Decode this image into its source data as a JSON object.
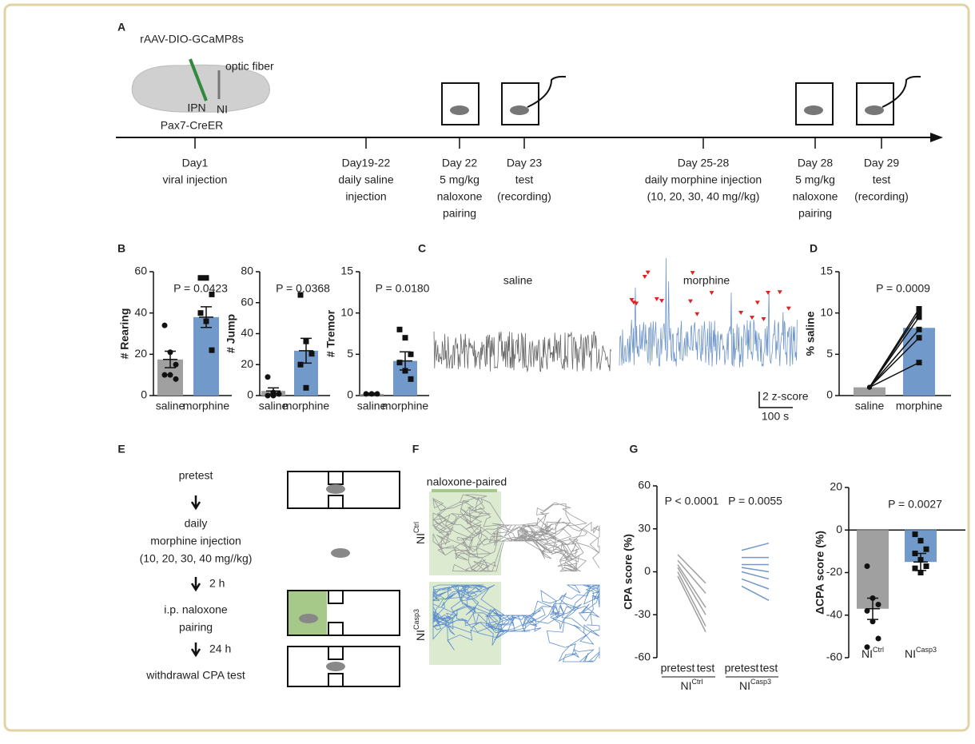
{
  "panel_labels": [
    "A",
    "B",
    "C",
    "D",
    "E",
    "F",
    "G"
  ],
  "timeline": {
    "injection_label": "rAAV-DIO-GCaMP8s",
    "fiber_label": "optic fiber",
    "ipn_label": "IPN",
    "ni_label": "NI",
    "mouse_line": "Pax7-CreER",
    "events": [
      {
        "lines": [
          "Day1",
          "viral injection"
        ]
      },
      {
        "lines": [
          "Day19-22",
          "daily saline",
          "injection"
        ]
      },
      {
        "lines": [
          "Day 22",
          "5 mg/kg",
          "naloxone",
          "pairing"
        ]
      },
      {
        "lines": [
          "Day 23",
          "test",
          "(recording)"
        ]
      },
      {
        "lines": [
          "Day 25-28",
          "daily morphine injection",
          "(10, 20, 30, 40 mg//kg)"
        ]
      },
      {
        "lines": [
          "Day 28",
          "5 mg/kg",
          "naloxone",
          "pairing"
        ]
      },
      {
        "lines": [
          "Day 29",
          "test",
          "(recording)"
        ]
      }
    ]
  },
  "traces": {
    "saline_label": "saline",
    "morphine_label": "morphine",
    "y_scale": "2 z-score",
    "x_scale": "100 s"
  },
  "protocol": {
    "steps": [
      [
        "pretest"
      ],
      [
        "daily",
        "morphine injection",
        "(10, 20, 30, 40 mg//kg)"
      ],
      [
        "i.p. naloxone",
        "pairing"
      ],
      [
        "withdrawal CPA test"
      ]
    ],
    "intervals": [
      "2 h",
      "24 h"
    ]
  },
  "tracks": {
    "zone_label": "naloxone-paired",
    "groups": [
      {
        "base": "NI",
        "sup": "Ctrl"
      },
      {
        "base": "NI",
        "sup": "Casp3"
      }
    ]
  },
  "chart_data": [
    {
      "type": "bar",
      "ylabel": "# Rearing",
      "annotation": "P = 0.0423",
      "categories": [
        "saline",
        "morphine"
      ],
      "values": [
        17.5,
        38
      ],
      "errors": [
        4,
        5
      ],
      "points": [
        [
          34,
          21,
          15,
          10,
          10,
          8
        ],
        [
          57,
          57,
          49,
          40,
          36,
          22
        ]
      ],
      "colors": [
        "#a0a0a0",
        "#7199c9"
      ],
      "ylim": [
        0,
        60
      ],
      "yticks": [
        0,
        20,
        40,
        60
      ]
    },
    {
      "type": "bar",
      "ylabel": "# Jump",
      "annotation": "P = 0.0368",
      "categories": [
        "saline",
        "morphine"
      ],
      "values": [
        3,
        29
      ],
      "errors": [
        2,
        8
      ],
      "points": [
        [
          12,
          2,
          1,
          0,
          0
        ],
        [
          65,
          35,
          27,
          20,
          5
        ]
      ],
      "colors": [
        "#a0a0a0",
        "#7199c9"
      ],
      "ylim": [
        0,
        80
      ],
      "yticks": [
        0,
        20,
        40,
        60,
        80
      ]
    },
    {
      "type": "bar",
      "ylabel": "# Tremor",
      "annotation": "P = 0.0180",
      "categories": [
        "saline",
        "morphine"
      ],
      "values": [
        0.2,
        4.2
      ],
      "errors": [
        0.1,
        1.1
      ],
      "points": [
        [
          0.2,
          0.2,
          0.2
        ],
        [
          8,
          7,
          5,
          4,
          3,
          2
        ]
      ],
      "colors": [
        "#a0a0a0",
        "#7199c9"
      ],
      "ylim": [
        0,
        15
      ],
      "yticks": [
        0,
        5,
        10,
        15
      ]
    },
    {
      "type": "bar",
      "paired": true,
      "ylabel": "% saline",
      "annotation": "P = 0.0009",
      "categories": [
        "saline",
        "morphine"
      ],
      "values": [
        1,
        8.2
      ],
      "points": [
        [
          1,
          1,
          1,
          1,
          1,
          1
        ],
        [
          10.5,
          10.1,
          9.5,
          8,
          7,
          4
        ]
      ],
      "colors": [
        "#a0a0a0",
        "#7199c9"
      ],
      "ylim": [
        0,
        15
      ],
      "yticks": [
        0,
        5,
        10,
        15
      ]
    },
    {
      "type": "slope",
      "ylabel": "CPA score (%)",
      "annotations": [
        "P < 0.0001",
        "P =  0.0055"
      ],
      "categories": [
        "pretest",
        "test",
        "pretest",
        "test"
      ],
      "groups": [
        {
          "base": "NI",
          "sup": "Ctrl"
        },
        {
          "base": "NI",
          "sup": "Casp3"
        }
      ],
      "series": [
        {
          "color": "#a0a0a0",
          "pretest": [
            12,
            8,
            5,
            3,
            0,
            -3
          ],
          "test": [
            -8,
            -15,
            -25,
            -30,
            -38,
            -42
          ]
        },
        {
          "color": "#7199c9",
          "pretest": [
            15,
            10,
            5,
            3,
            0,
            -5,
            -10
          ],
          "test": [
            20,
            10,
            5,
            0,
            -5,
            -12,
            -20
          ]
        }
      ],
      "ylim": [
        -60,
        60
      ],
      "yticks": [
        -60,
        -30,
        0,
        30,
        60
      ]
    },
    {
      "type": "bar",
      "ylabel": "ΔCPA score (%)",
      "annotation": "P = 0.0027",
      "categories": [
        "NI",
        "NI"
      ],
      "category_sups": [
        "Ctrl",
        "Casp3"
      ],
      "values": [
        -37,
        -15
      ],
      "errors": [
        5,
        4
      ],
      "points": [
        [
          -17,
          -32,
          -35,
          -38,
          -43,
          -51,
          -55
        ],
        [
          -2,
          -5,
          -9,
          -11,
          -14,
          -17,
          -18,
          -20
        ]
      ],
      "colors": [
        "#a0a0a0",
        "#7199c9"
      ],
      "ylim": [
        -60,
        20
      ],
      "yticks": [
        -60,
        -40,
        -20,
        0,
        20
      ]
    }
  ]
}
